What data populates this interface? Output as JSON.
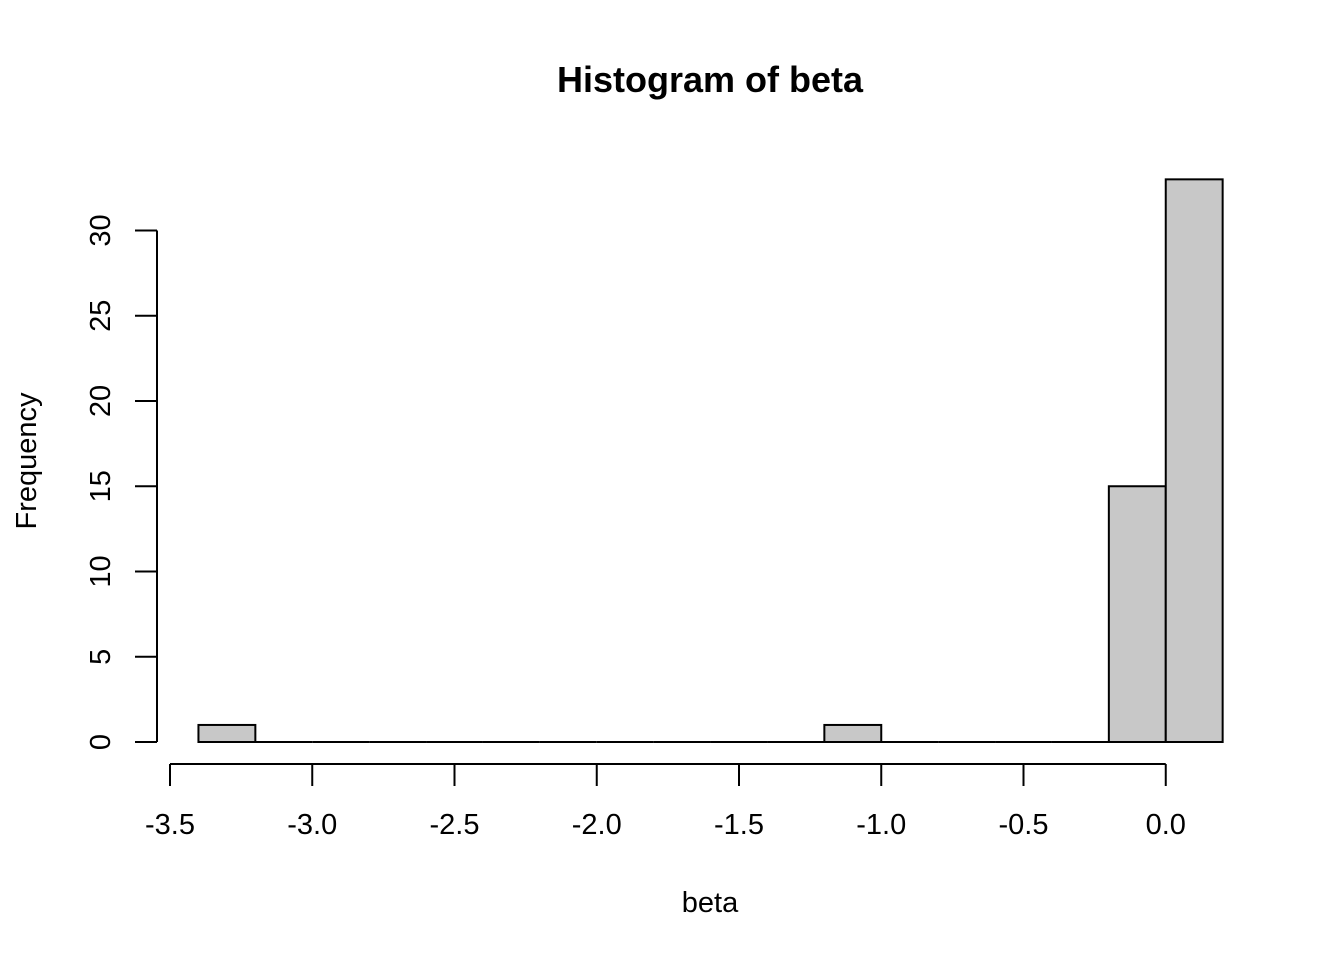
{
  "chart_data": {
    "type": "bar",
    "title": "Histogram of beta",
    "xlabel": "beta",
    "ylabel": "Frequency",
    "bins": [
      {
        "from": -3.4,
        "to": -3.2,
        "count": 1
      },
      {
        "from": -3.2,
        "to": -3.0,
        "count": 0
      },
      {
        "from": -3.0,
        "to": -2.8,
        "count": 0
      },
      {
        "from": -2.8,
        "to": -2.6,
        "count": 0
      },
      {
        "from": -2.6,
        "to": -2.4,
        "count": 0
      },
      {
        "from": -2.4,
        "to": -2.2,
        "count": 0
      },
      {
        "from": -2.2,
        "to": -2.0,
        "count": 0
      },
      {
        "from": -2.0,
        "to": -1.8,
        "count": 0
      },
      {
        "from": -1.8,
        "to": -1.6,
        "count": 0
      },
      {
        "from": -1.6,
        "to": -1.4,
        "count": 0
      },
      {
        "from": -1.4,
        "to": -1.2,
        "count": 0
      },
      {
        "from": -1.2,
        "to": -1.0,
        "count": 1
      },
      {
        "from": -1.0,
        "to": -0.8,
        "count": 0
      },
      {
        "from": -0.8,
        "to": -0.6,
        "count": 0
      },
      {
        "from": -0.6,
        "to": -0.4,
        "count": 0
      },
      {
        "from": -0.4,
        "to": -0.2,
        "count": 0
      },
      {
        "from": -0.2,
        "to": 0.0,
        "count": 15
      },
      {
        "from": 0.0,
        "to": 0.2,
        "count": 33
      }
    ],
    "xticks": [
      -3.5,
      -3.0,
      -2.5,
      -2.0,
      -1.5,
      -1.0,
      -0.5,
      0.0
    ],
    "xtick_labels": [
      "-3.5",
      "-3.0",
      "-2.5",
      "-2.0",
      "-1.5",
      "-1.0",
      "-0.5",
      "0.0"
    ],
    "yticks": [
      0,
      5,
      10,
      15,
      20,
      25,
      30
    ],
    "ytick_labels": [
      "0",
      "5",
      "10",
      "15",
      "20",
      "25",
      "30"
    ],
    "xlim": [
      -3.5,
      0.2
    ],
    "ylim": [
      0,
      33
    ],
    "grid": false,
    "legend": "none",
    "bar_fill": "#c8c8c8",
    "bar_stroke": "#000000"
  }
}
